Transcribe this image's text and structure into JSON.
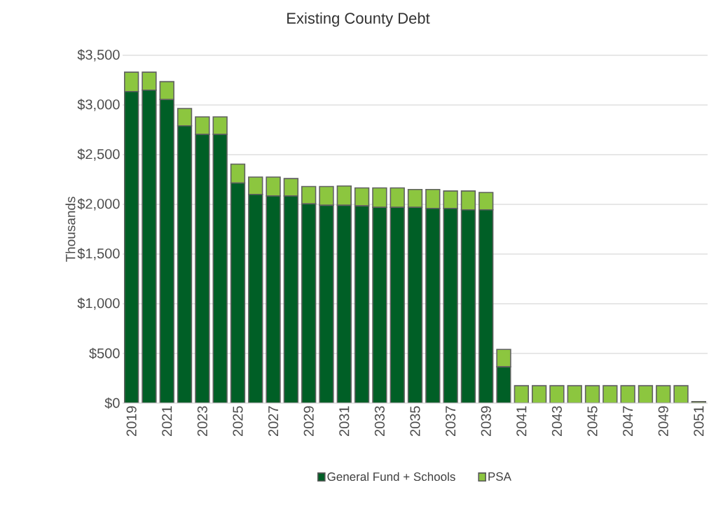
{
  "chart_data": {
    "type": "bar",
    "title": "Existing County Debt",
    "ylabel": "Thousands",
    "stacked": true,
    "grid": "y",
    "legend": "bottom",
    "categories": [
      "2019",
      null,
      "2021",
      null,
      "2023",
      null,
      "2025",
      null,
      "2027",
      null,
      "2029",
      null,
      "2031",
      null,
      "2033",
      null,
      "2035",
      null,
      "2037",
      null,
      "2039",
      null,
      "2041",
      null,
      "2043",
      null,
      "2045",
      null,
      "2047",
      null,
      "2049",
      null,
      "2051"
    ],
    "series": [
      {
        "name": "General Fund + Schools",
        "color": "#005f26",
        "values": [
          3135,
          3150,
          3055,
          2790,
          2705,
          2705,
          2215,
          2100,
          2085,
          2085,
          2005,
          1990,
          1990,
          1985,
          1970,
          1970,
          1970,
          1960,
          1960,
          1945,
          1945,
          365,
          0,
          0,
          0,
          0,
          0,
          0,
          0,
          0,
          0,
          0,
          0
        ]
      },
      {
        "name": "PSA",
        "color": "#8cc63f",
        "values": [
          195,
          180,
          180,
          175,
          175,
          175,
          190,
          175,
          190,
          175,
          175,
          190,
          195,
          180,
          195,
          195,
          180,
          190,
          175,
          190,
          175,
          175,
          175,
          175,
          175,
          175,
          175,
          175,
          175,
          175,
          175,
          175,
          15
        ]
      }
    ],
    "ylim": [
      0,
      3500
    ],
    "yticks": [
      {
        "value": 0,
        "label": "$0"
      },
      {
        "value": 500,
        "label": "$500"
      },
      {
        "value": 1000,
        "label": "$1,000"
      },
      {
        "value": 1500,
        "label": "$1,500"
      },
      {
        "value": 2000,
        "label": "$2,000"
      },
      {
        "value": 2500,
        "label": "$2,500"
      },
      {
        "value": 3000,
        "label": "$3,000"
      },
      {
        "value": 3500,
        "label": "$3,500"
      }
    ]
  }
}
